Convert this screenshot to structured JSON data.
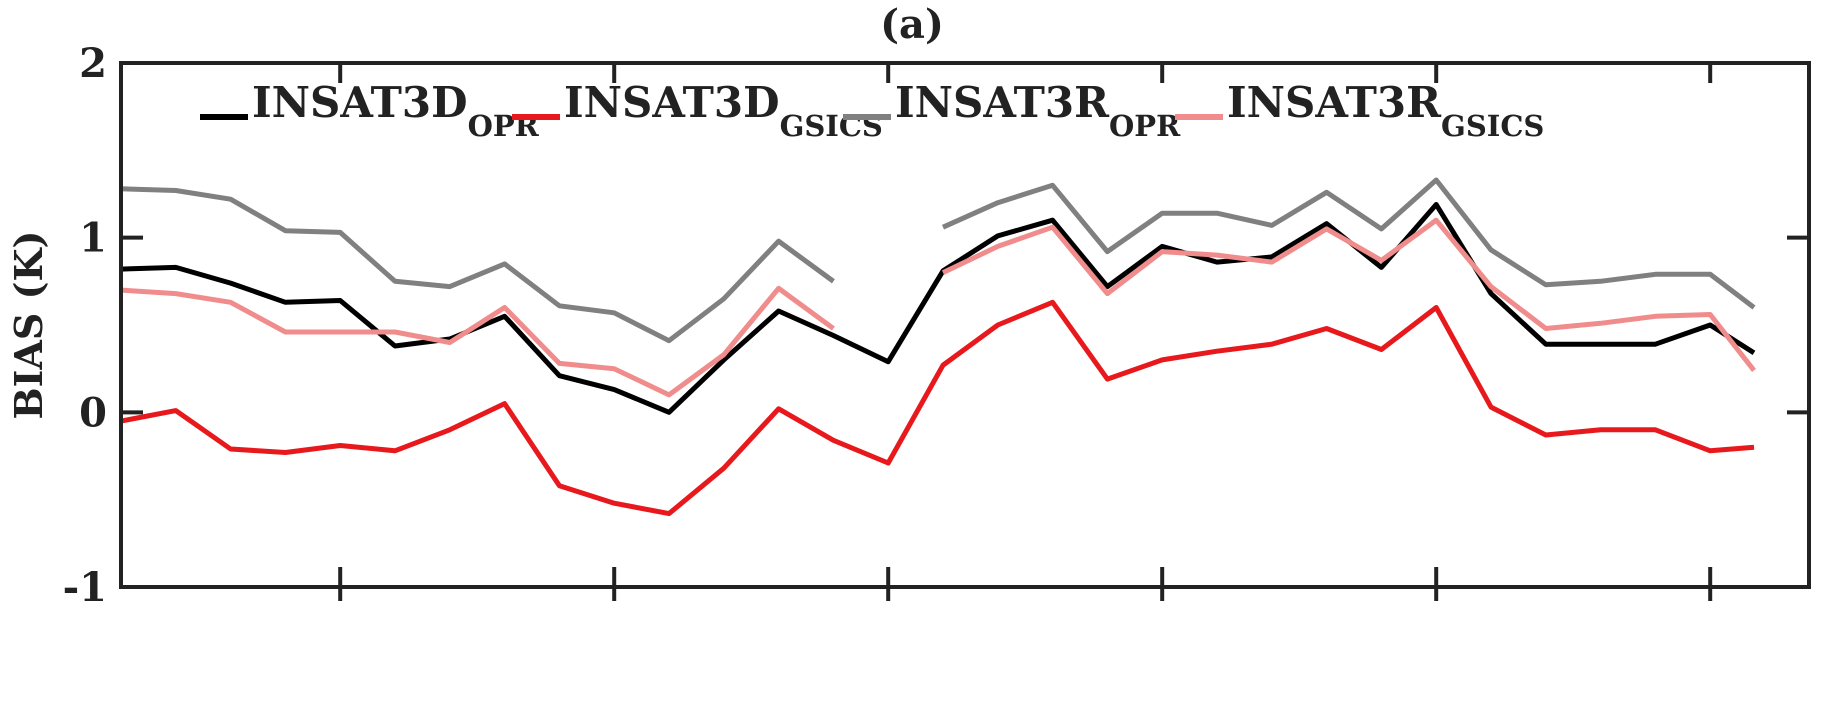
{
  "chart_data": {
    "type": "line",
    "title": "(a)",
    "xlabel": "",
    "ylabel": "BIAS (K)",
    "ylim": [
      -1,
      2
    ],
    "xlim": [
      0,
      29
    ],
    "yticks": [
      -1,
      0,
      1,
      2
    ],
    "ytick_labels": [
      "-1",
      "0",
      "1",
      "2"
    ],
    "xticks": [
      4,
      9,
      14,
      19,
      24,
      29
    ],
    "grid": false,
    "legend_position": "top",
    "colors": {
      "INSAT3D_OPR": "#000000",
      "INSAT3D_GSICS": "#e8191c",
      "INSAT3R_OPR": "#808080",
      "INSAT3R_GSICS": "#f08c8c"
    },
    "series": [
      {
        "name": "INSAT3D_OPR",
        "legend_main": "INSAT3D",
        "legend_sub": "OPR",
        "key": "INSAT3D_OPR",
        "x": [
          0,
          1,
          2,
          3,
          4,
          5,
          6,
          7,
          8,
          9,
          10,
          11,
          12,
          13,
          14,
          15,
          16,
          17,
          18,
          19,
          20,
          21,
          22,
          23,
          24,
          25,
          26,
          27,
          28,
          29
        ],
        "values": [
          0.82,
          0.83,
          0.74,
          0.63,
          0.64,
          0.38,
          0.42,
          0.55,
          0.21,
          0.13,
          0.0,
          0.3,
          0.58,
          0.44,
          0.29,
          0.81,
          1.01,
          1.1,
          0.72,
          0.95,
          0.86,
          0.89,
          1.08,
          0.83,
          1.19,
          0.68,
          0.39,
          0.39,
          0.39,
          0.5
        ]
      },
      {
        "name": "INSAT3D_GSICS",
        "legend_main": "INSAT3D",
        "legend_sub": "GSICS",
        "key": "INSAT3D_GSICS",
        "x": [
          0,
          1,
          2,
          3,
          4,
          5,
          6,
          7,
          8,
          9,
          10,
          11,
          12,
          13,
          14,
          15,
          16,
          17,
          18,
          19,
          20,
          21,
          22,
          23,
          24,
          25,
          26,
          27,
          28,
          29
        ],
        "values": [
          -0.05,
          0.01,
          -0.21,
          -0.23,
          -0.19,
          -0.22,
          -0.1,
          0.05,
          -0.42,
          -0.52,
          -0.58,
          -0.32,
          0.02,
          -0.16,
          -0.29,
          0.27,
          0.5,
          0.63,
          0.19,
          0.3,
          0.35,
          0.39,
          0.48,
          0.36,
          0.6,
          0.03,
          -0.13,
          -0.1,
          -0.1,
          -0.22
        ]
      },
      {
        "name": "INSAT3R_OPR",
        "legend_main": "INSAT3R",
        "legend_sub": "OPR",
        "key": "INSAT3R_OPR",
        "x": [
          0,
          1,
          2,
          3,
          4,
          5,
          6,
          7,
          8,
          9,
          10,
          11,
          12,
          13,
          14,
          15,
          16,
          17,
          18,
          19,
          20,
          21,
          22,
          23,
          24,
          25,
          26,
          27,
          28,
          29
        ],
        "values": [
          1.28,
          1.27,
          1.22,
          1.04,
          1.03,
          0.75,
          0.72,
          0.85,
          0.61,
          0.57,
          0.41,
          0.65,
          0.98,
          0.75,
          null,
          1.06,
          1.2,
          1.3,
          0.92,
          1.14,
          1.14,
          1.07,
          1.26,
          1.05,
          1.33,
          0.93,
          0.73,
          0.75,
          0.79,
          0.79
        ]
      },
      {
        "name": "INSAT3R_GSICS",
        "legend_main": "INSAT3R",
        "legend_sub": "GSICS",
        "key": "INSAT3R_GSICS",
        "x": [
          0,
          1,
          2,
          3,
          4,
          5,
          6,
          7,
          8,
          9,
          10,
          11,
          12,
          13,
          14,
          15,
          16,
          17,
          18,
          19,
          20,
          21,
          22,
          23,
          24,
          25,
          26,
          27,
          28,
          29
        ],
        "values": [
          0.7,
          0.68,
          0.63,
          0.46,
          0.46,
          0.46,
          0.4,
          0.6,
          0.28,
          0.25,
          0.1,
          0.33,
          0.71,
          0.48,
          null,
          0.8,
          0.95,
          1.06,
          0.68,
          0.92,
          0.9,
          0.86,
          1.05,
          0.87,
          1.1,
          0.72,
          0.48,
          0.51,
          0.55,
          0.56
        ]
      }
    ],
    "series_end": [
      {
        "key": "INSAT3D_OPR",
        "x": 29.8,
        "value": 0.34
      },
      {
        "key": "INSAT3D_GSICS",
        "x": 29.8,
        "value": -0.2
      },
      {
        "key": "INSAT3R_OPR",
        "x": 29.8,
        "value": 0.6
      },
      {
        "key": "INSAT3R_GSICS",
        "x": 29.8,
        "value": 0.24
      }
    ]
  }
}
